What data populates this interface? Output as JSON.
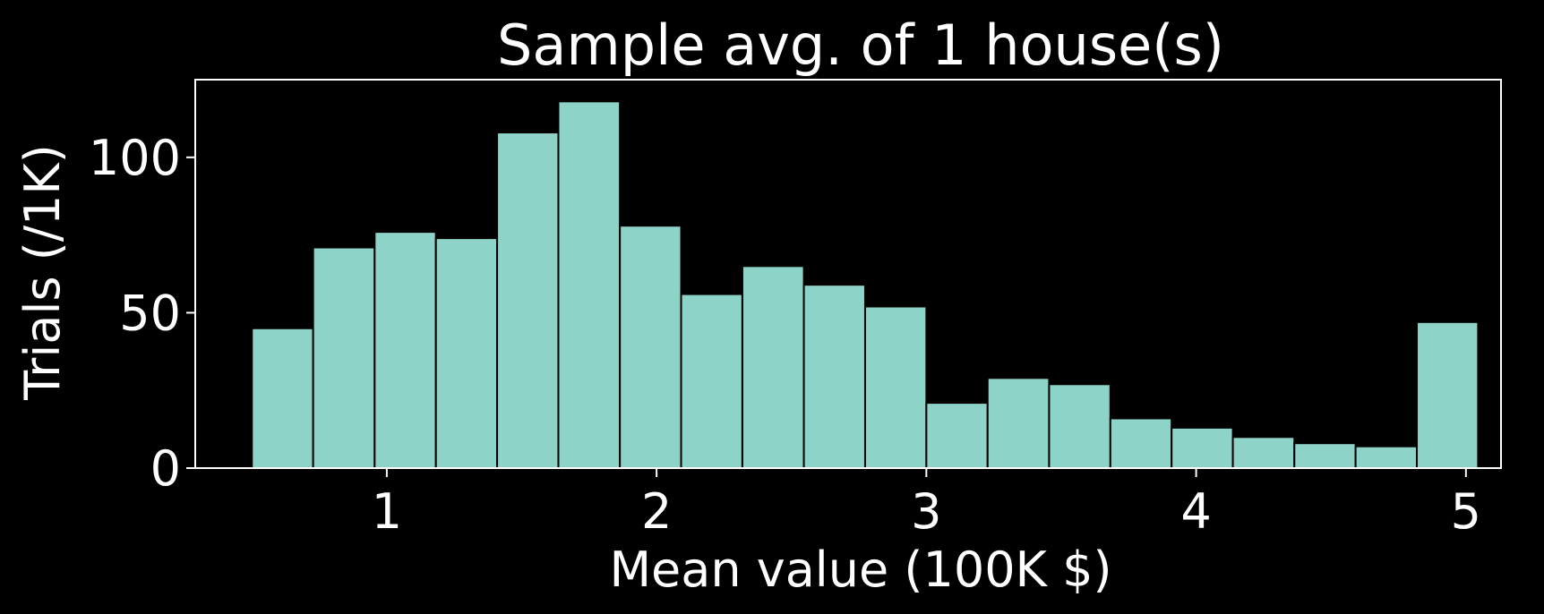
{
  "chart_data": {
    "type": "bar",
    "title": "Sample avg. of 1 house(s)",
    "xlabel": "Mean value (100K $)",
    "ylabel": "Trials (/1K)",
    "xlim": [
      0.29,
      5.13
    ],
    "ylim": [
      0,
      125
    ],
    "xticks": [
      1,
      2,
      3,
      4,
      5
    ],
    "yticks": [
      0,
      50,
      100
    ],
    "grid": false,
    "colors": {
      "background": "#000000",
      "bar": "#8dd3c7",
      "bar_edge": "#000000",
      "axes": "#ffffff",
      "text": "#ffffff"
    },
    "bins": [
      {
        "x0": 0.5,
        "x1": 0.727,
        "value": 45
      },
      {
        "x0": 0.727,
        "x1": 0.955,
        "value": 71
      },
      {
        "x0": 0.955,
        "x1": 1.182,
        "value": 76
      },
      {
        "x0": 1.182,
        "x1": 1.409,
        "value": 74
      },
      {
        "x0": 1.409,
        "x1": 1.636,
        "value": 108
      },
      {
        "x0": 1.636,
        "x1": 1.864,
        "value": 118
      },
      {
        "x0": 1.864,
        "x1": 2.091,
        "value": 78
      },
      {
        "x0": 2.091,
        "x1": 2.318,
        "value": 56
      },
      {
        "x0": 2.318,
        "x1": 2.546,
        "value": 65
      },
      {
        "x0": 2.546,
        "x1": 2.773,
        "value": 59
      },
      {
        "x0": 2.773,
        "x1": 3.0,
        "value": 52
      },
      {
        "x0": 3.0,
        "x1": 3.227,
        "value": 21
      },
      {
        "x0": 3.227,
        "x1": 3.455,
        "value": 29
      },
      {
        "x0": 3.455,
        "x1": 3.682,
        "value": 27
      },
      {
        "x0": 3.682,
        "x1": 3.909,
        "value": 16
      },
      {
        "x0": 3.909,
        "x1": 4.136,
        "value": 13
      },
      {
        "x0": 4.136,
        "x1": 4.364,
        "value": 10
      },
      {
        "x0": 4.364,
        "x1": 4.591,
        "value": 8
      },
      {
        "x0": 4.591,
        "x1": 4.818,
        "value": 7
      },
      {
        "x0": 4.818,
        "x1": 5.045,
        "value": 47
      }
    ]
  }
}
